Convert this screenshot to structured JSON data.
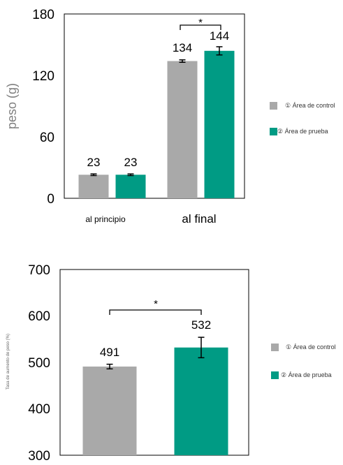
{
  "colors": {
    "control": "#a9a9a9",
    "test": "#009b84"
  },
  "legend": [
    "① Área de control",
    "② Área de prueba"
  ],
  "chart_data": [
    {
      "type": "bar",
      "ylabel": "peso (g)",
      "ylim": [
        0,
        180
      ],
      "yticks": [
        "0",
        "60",
        "120",
        "180"
      ],
      "categories": [
        "al principio",
        "al final"
      ],
      "series": [
        {
          "name": "① Área de control",
          "values": [
            23,
            134
          ],
          "error": [
            0.8,
            1.2
          ]
        },
        {
          "name": "② Área de prueba",
          "values": [
            23,
            144
          ],
          "error": [
            0.8,
            4.0
          ]
        }
      ],
      "data_labels": [
        "23",
        "134",
        "23",
        "144"
      ],
      "significance": "*",
      "legend_position": "right"
    },
    {
      "type": "bar",
      "ylabel": "Tasa de aumento de peso (%)",
      "ylim": [
        300,
        700
      ],
      "yticks": [
        "300",
        "400",
        "500",
        "600",
        "700"
      ],
      "categories": [
        "① Área de control",
        "② Área de prueba"
      ],
      "values": [
        491,
        532
      ],
      "error": [
        5,
        22
      ],
      "data_labels": [
        "491",
        "532"
      ],
      "significance": "*",
      "legend_position": "right"
    }
  ]
}
